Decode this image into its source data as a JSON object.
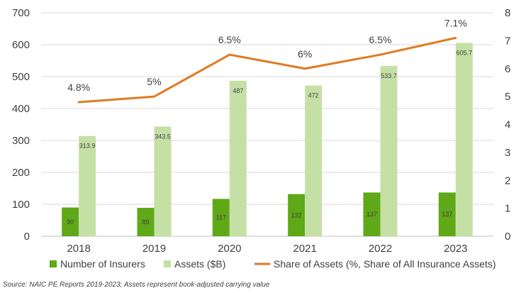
{
  "chart_data": {
    "type": "bar",
    "categories": [
      "2018",
      "2019",
      "2020",
      "2021",
      "2022",
      "2023"
    ],
    "series": [
      {
        "name": "Number of Insurers",
        "kind": "bar",
        "axis": "left",
        "color": "#5fa817",
        "values": [
          90,
          89,
          117,
          132,
          137,
          137
        ],
        "labels": [
          "90",
          "89",
          "117",
          "132",
          "137",
          "137"
        ]
      },
      {
        "name": "Assets ($B)",
        "kind": "bar",
        "axis": "left",
        "color": "#c5e0a5",
        "values": [
          313.9,
          343.5,
          487,
          472,
          533.7,
          605.7
        ],
        "labels": [
          "313.9",
          "343.5",
          "487",
          "472",
          "533.7",
          "605.7"
        ]
      },
      {
        "name": "Share of Assets (%, Share of All Insurance Assets)",
        "kind": "line",
        "axis": "right",
        "color": "#e07a1f",
        "values": [
          4.8,
          5,
          6.5,
          6,
          6.5,
          7.1
        ],
        "labels": [
          "4.8%",
          "5%",
          "6.5%",
          "6%",
          "6.5%",
          "7.1%"
        ]
      }
    ],
    "ylim_left": [
      0,
      700
    ],
    "yticks_left": [
      "0",
      "100",
      "200",
      "300",
      "400",
      "500",
      "600",
      "700"
    ],
    "ylim_right": [
      0,
      8
    ],
    "yticks_right": [
      "0",
      "1",
      "2",
      "3",
      "4",
      "5",
      "6",
      "7",
      "8"
    ],
    "grid": true,
    "legend_position": "bottom"
  },
  "source_note": "Source: NAIC PE Reports 2019-2023; Assets represent book-adjusted carrying value"
}
